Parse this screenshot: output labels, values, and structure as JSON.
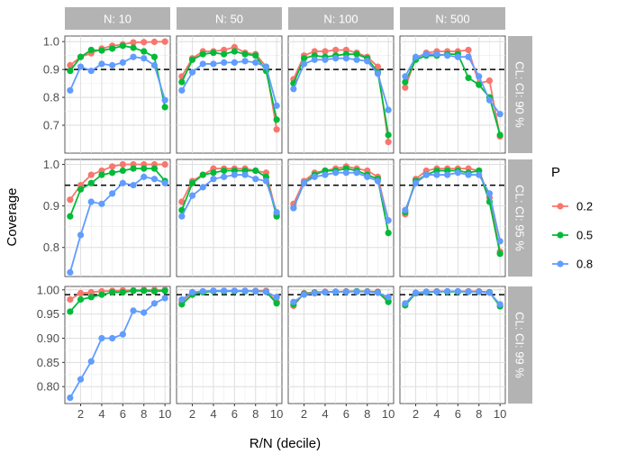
{
  "chart_data": {
    "type": "line",
    "x": [
      1,
      2,
      3,
      4,
      5,
      6,
      7,
      8,
      9,
      10
    ],
    "xlabel": "R/N (decile)",
    "ylabel": "Coverage",
    "x_ticks": [
      2,
      4,
      6,
      8,
      10
    ],
    "col_strips": [
      "N: 10",
      "N: 50",
      "N: 100",
      "N: 500"
    ],
    "row_strips": [
      "CL: CI: 90 %",
      "CL: CI: 95 %",
      "CL: CI: 99 %"
    ],
    "legend": {
      "title": "P",
      "placement": "right",
      "entries": [
        {
          "label": "0.2",
          "color": "#F8766D"
        },
        {
          "label": "0.5",
          "color": "#00BA38"
        },
        {
          "label": "0.8",
          "color": "#619CFF"
        }
      ]
    },
    "grid": true,
    "rows": [
      {
        "reference_line": 0.9,
        "ylim": [
          0.6,
          1.02
        ],
        "y_ticks": [
          0.7,
          0.8,
          0.9,
          1.0
        ],
        "y_tick_labels": [
          "0.7",
          "0.8",
          "0.9",
          "1.0"
        ],
        "panels": [
          {
            "series": [
              {
                "name": "0.2",
                "values": [
                  0.915,
                  0.945,
                  0.958,
                  0.975,
                  0.985,
                  0.99,
                  0.997,
                  0.998,
                  0.999,
                  1.0
                ]
              },
              {
                "name": "0.5",
                "values": [
                  0.895,
                  0.945,
                  0.97,
                  0.968,
                  0.975,
                  0.985,
                  0.978,
                  0.965,
                  0.945,
                  0.765
                ]
              },
              {
                "name": "0.8",
                "values": [
                  0.825,
                  0.91,
                  0.895,
                  0.92,
                  0.915,
                  0.925,
                  0.945,
                  0.94,
                  0.915,
                  0.79
                ]
              }
            ]
          },
          {
            "series": [
              {
                "name": "0.2",
                "values": [
                  0.875,
                  0.94,
                  0.965,
                  0.965,
                  0.97,
                  0.98,
                  0.96,
                  0.955,
                  0.91,
                  0.685
                ]
              },
              {
                "name": "0.5",
                "values": [
                  0.855,
                  0.935,
                  0.955,
                  0.96,
                  0.955,
                  0.965,
                  0.955,
                  0.95,
                  0.895,
                  0.72
                ]
              },
              {
                "name": "0.8",
                "values": [
                  0.825,
                  0.89,
                  0.92,
                  0.92,
                  0.925,
                  0.925,
                  0.93,
                  0.925,
                  0.91,
                  0.77
                ]
              }
            ]
          },
          {
            "series": [
              {
                "name": "0.2",
                "values": [
                  0.865,
                  0.95,
                  0.965,
                  0.965,
                  0.97,
                  0.97,
                  0.96,
                  0.945,
                  0.91,
                  0.64
                ]
              },
              {
                "name": "0.5",
                "values": [
                  0.85,
                  0.94,
                  0.95,
                  0.945,
                  0.95,
                  0.955,
                  0.955,
                  0.94,
                  0.89,
                  0.665
                ]
              },
              {
                "name": "0.8",
                "values": [
                  0.83,
                  0.92,
                  0.935,
                  0.935,
                  0.94,
                  0.94,
                  0.935,
                  0.93,
                  0.885,
                  0.755
                ]
              }
            ]
          },
          {
            "series": [
              {
                "name": "0.2",
                "values": [
                  0.835,
                  0.94,
                  0.96,
                  0.965,
                  0.965,
                  0.965,
                  0.97,
                  0.85,
                  0.86,
                  0.66
                ]
              },
              {
                "name": "0.5",
                "values": [
                  0.855,
                  0.935,
                  0.95,
                  0.95,
                  0.955,
                  0.955,
                  0.87,
                  0.845,
                  0.8,
                  0.665
                ]
              },
              {
                "name": "0.8",
                "values": [
                  0.875,
                  0.945,
                  0.955,
                  0.955,
                  0.95,
                  0.945,
                  0.945,
                  0.875,
                  0.79,
                  0.74
                ]
              }
            ]
          }
        ]
      },
      {
        "reference_line": 0.95,
        "ylim": [
          0.73,
          1.012
        ],
        "y_ticks": [
          0.8,
          0.9,
          1.0
        ],
        "y_tick_labels": [
          "0.8",
          "0.9",
          "1.0"
        ],
        "panels": [
          {
            "series": [
              {
                "name": "0.2",
                "values": [
                  0.915,
                  0.95,
                  0.975,
                  0.985,
                  0.995,
                  1.0,
                  1.0,
                  1.0,
                  1.0,
                  1.0
                ]
              },
              {
                "name": "0.5",
                "values": [
                  0.875,
                  0.94,
                  0.955,
                  0.975,
                  0.98,
                  0.985,
                  0.99,
                  0.99,
                  0.99,
                  0.96
                ]
              },
              {
                "name": "0.8",
                "values": [
                  0.74,
                  0.83,
                  0.91,
                  0.905,
                  0.93,
                  0.955,
                  0.95,
                  0.97,
                  0.965,
                  0.955
                ]
              }
            ]
          },
          {
            "series": [
              {
                "name": "0.2",
                "values": [
                  0.91,
                  0.96,
                  0.975,
                  0.99,
                  0.99,
                  0.99,
                  0.99,
                  0.985,
                  0.98,
                  0.88
                ]
              },
              {
                "name": "0.5",
                "values": [
                  0.89,
                  0.955,
                  0.975,
                  0.98,
                  0.985,
                  0.985,
                  0.985,
                  0.985,
                  0.97,
                  0.875
                ]
              },
              {
                "name": "0.8",
                "values": [
                  0.875,
                  0.925,
                  0.945,
                  0.965,
                  0.97,
                  0.975,
                  0.975,
                  0.965,
                  0.96,
                  0.885
                ]
              }
            ]
          },
          {
            "series": [
              {
                "name": "0.2",
                "values": [
                  0.905,
                  0.96,
                  0.98,
                  0.985,
                  0.99,
                  0.995,
                  0.99,
                  0.985,
                  0.97,
                  0.865
                ]
              },
              {
                "name": "0.5",
                "values": [
                  0.895,
                  0.955,
                  0.975,
                  0.985,
                  0.985,
                  0.99,
                  0.985,
                  0.975,
                  0.965,
                  0.835
                ]
              },
              {
                "name": "0.8",
                "values": [
                  0.895,
                  0.955,
                  0.97,
                  0.975,
                  0.98,
                  0.98,
                  0.98,
                  0.97,
                  0.96,
                  0.865
                ]
              }
            ]
          },
          {
            "series": [
              {
                "name": "0.2",
                "values": [
                  0.88,
                  0.965,
                  0.985,
                  0.99,
                  0.99,
                  0.99,
                  0.99,
                  0.985,
                  0.92,
                  0.79
                ]
              },
              {
                "name": "0.5",
                "values": [
                  0.885,
                  0.96,
                  0.975,
                  0.985,
                  0.985,
                  0.985,
                  0.98,
                  0.985,
                  0.91,
                  0.785
                ]
              },
              {
                "name": "0.8",
                "values": [
                  0.89,
                  0.955,
                  0.975,
                  0.975,
                  0.975,
                  0.98,
                  0.975,
                  0.975,
                  0.93,
                  0.815
                ]
              }
            ]
          }
        ]
      },
      {
        "reference_line": 0.99,
        "ylim": [
          0.765,
          1.007
        ],
        "y_ticks": [
          0.8,
          0.85,
          0.9,
          0.95,
          1.0
        ],
        "y_tick_labels": [
          "0.80",
          "0.85",
          "0.90",
          "0.95",
          "1.00"
        ],
        "panels": [
          {
            "series": [
              {
                "name": "0.2",
                "values": [
                  0.98,
                  0.993,
                  0.995,
                  0.997,
                  0.998,
                  0.999,
                  0.999,
                  1.0,
                  1.0,
                  1.0
                ]
              },
              {
                "name": "0.5",
                "values": [
                  0.955,
                  0.98,
                  0.985,
                  0.99,
                  0.995,
                  0.995,
                  0.998,
                  0.998,
                  0.997,
                  0.998
                ]
              },
              {
                "name": "0.8",
                "values": [
                  0.777,
                  0.815,
                  0.852,
                  0.9,
                  0.9,
                  0.908,
                  0.957,
                  0.953,
                  0.972,
                  0.983
                ]
              }
            ]
          },
          {
            "series": [
              {
                "name": "0.2",
                "values": [
                  0.975,
                  0.995,
                  0.997,
                  0.998,
                  0.998,
                  0.998,
                  0.998,
                  0.998,
                  0.998,
                  0.975
                ]
              },
              {
                "name": "0.5",
                "values": [
                  0.97,
                  0.99,
                  0.995,
                  0.997,
                  0.997,
                  0.997,
                  0.997,
                  0.997,
                  0.996,
                  0.972
                ]
              },
              {
                "name": "0.8",
                "values": [
                  0.98,
                  0.995,
                  0.997,
                  0.998,
                  0.998,
                  0.998,
                  0.998,
                  0.997,
                  0.996,
                  0.985
                ]
              }
            ]
          },
          {
            "series": [
              {
                "name": "0.2",
                "values": [
                  0.967,
                  0.993,
                  0.995,
                  0.996,
                  0.996,
                  0.997,
                  0.997,
                  0.997,
                  0.996,
                  0.978
                ]
              },
              {
                "name": "0.5",
                "values": [
                  0.97,
                  0.992,
                  0.994,
                  0.995,
                  0.996,
                  0.996,
                  0.997,
                  0.996,
                  0.995,
                  0.975
                ]
              },
              {
                "name": "0.8",
                "values": [
                  0.975,
                  0.99,
                  0.993,
                  0.995,
                  0.996,
                  0.996,
                  0.996,
                  0.996,
                  0.994,
                  0.985
                ]
              }
            ]
          },
          {
            "series": [
              {
                "name": "0.2",
                "values": [
                  0.97,
                  0.994,
                  0.996,
                  0.997,
                  0.997,
                  0.997,
                  0.997,
                  0.997,
                  0.995,
                  0.968
                ]
              },
              {
                "name": "0.5",
                "values": [
                  0.968,
                  0.993,
                  0.995,
                  0.996,
                  0.996,
                  0.996,
                  0.996,
                  0.996,
                  0.995,
                  0.966
                ]
              },
              {
                "name": "0.8",
                "values": [
                  0.972,
                  0.994,
                  0.996,
                  0.996,
                  0.997,
                  0.997,
                  0.996,
                  0.996,
                  0.994,
                  0.97
                ]
              }
            ]
          }
        ]
      }
    ]
  }
}
